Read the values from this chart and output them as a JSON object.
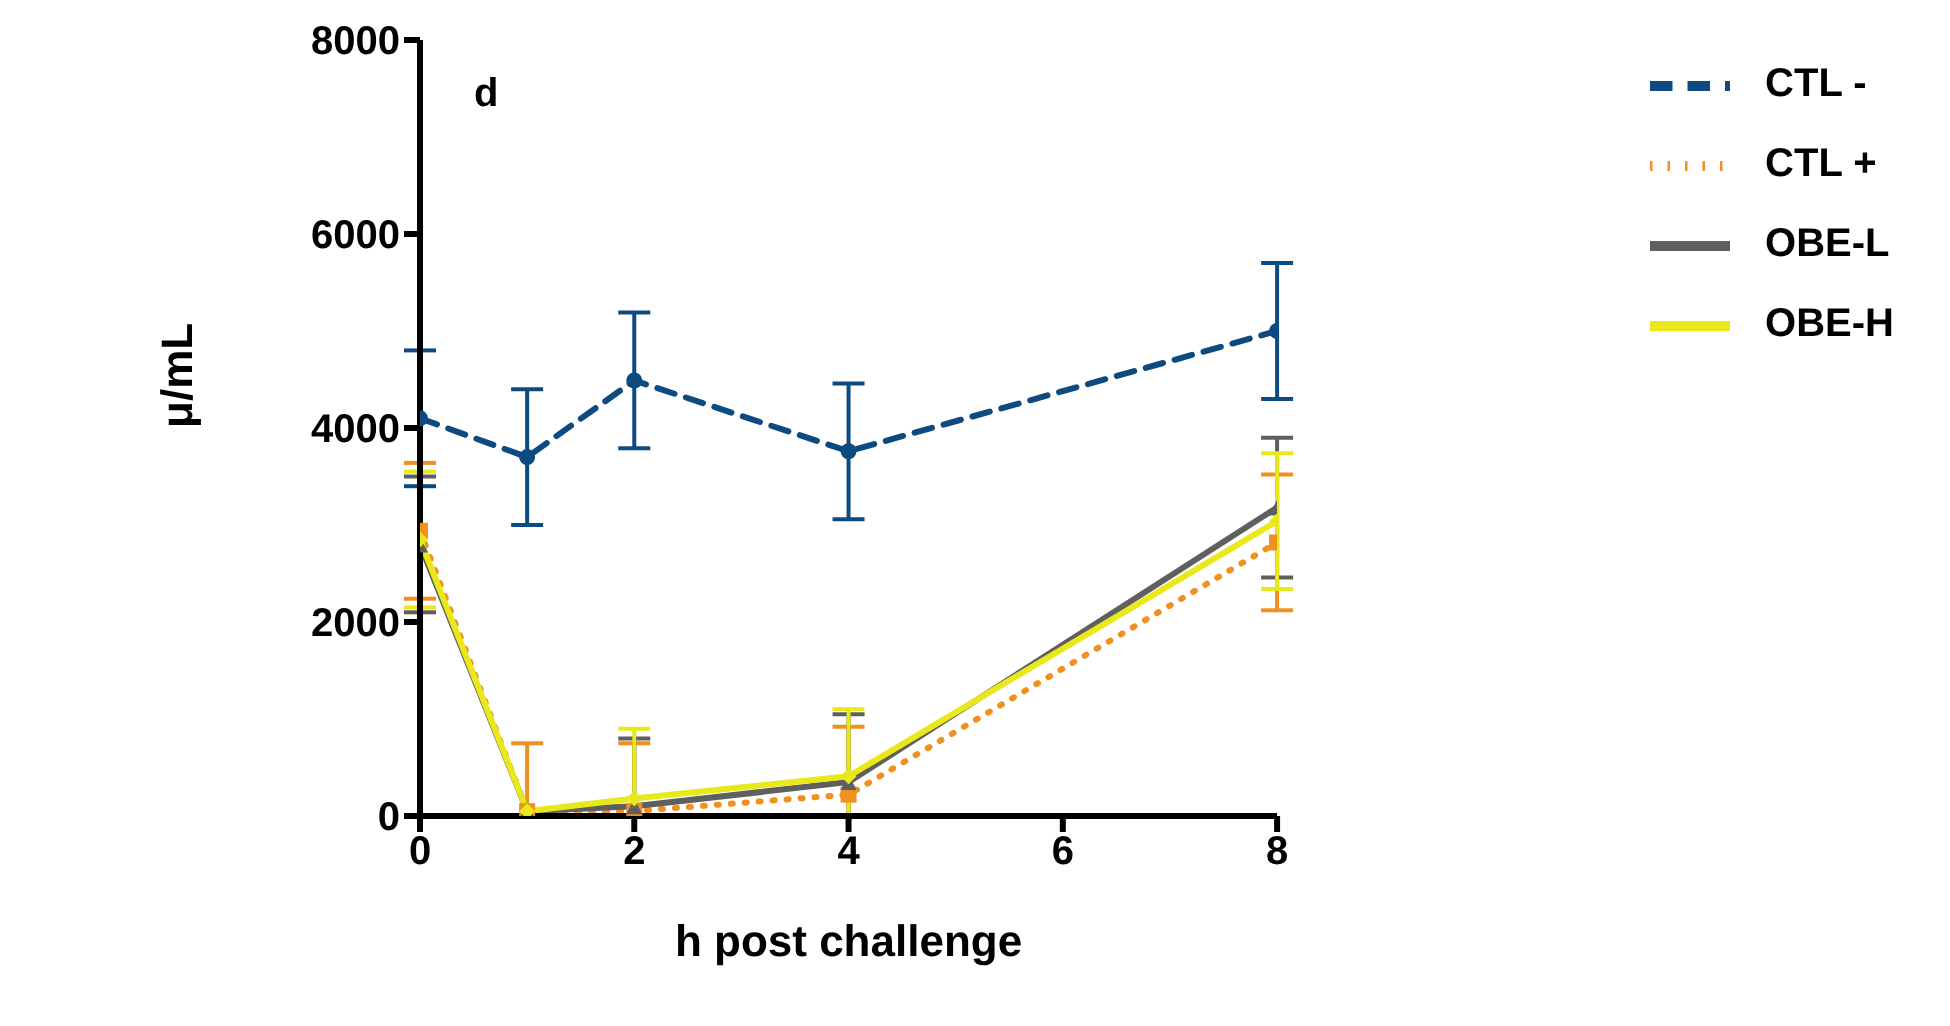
{
  "chart_data": {
    "type": "line",
    "xlabel": "h post challenge",
    "ylabel": "μ/mL",
    "annotations": [
      "d"
    ],
    "x": [
      0,
      1,
      2,
      4,
      8
    ],
    "xlim": [
      0,
      8
    ],
    "xticks": [
      0,
      2,
      4,
      6,
      8
    ],
    "ylim": [
      0,
      8000
    ],
    "yticks": [
      0,
      2000,
      4000,
      6000,
      8000
    ],
    "grid": false,
    "legend": "top right",
    "series": [
      {
        "name": "CTL -",
        "color": "#0d4a80",
        "marker": "circle",
        "line_style": "dashed",
        "values": [
          4100,
          3700,
          4490,
          3760,
          5000
        ],
        "errors": [
          700,
          700,
          700,
          700,
          700
        ]
      },
      {
        "name": "CTL +",
        "color": "#f0901e",
        "marker": "square",
        "line_style": "dotted",
        "values": [
          2940,
          50,
          50,
          220,
          2820
        ],
        "errors": [
          700,
          [
            0,
            750
          ],
          [
            0,
            750
          ],
          [
            0,
            920
          ],
          700
        ]
      },
      {
        "name": "OBE-L",
        "color": "#5f5f5f",
        "marker": "triangle",
        "line_style": "solid",
        "values": [
          2800,
          50,
          100,
          350,
          3180
        ],
        "errors": [
          700,
          null,
          [
            0,
            800
          ],
          [
            0,
            1050
          ],
          720
        ]
      },
      {
        "name": "OBE-H",
        "color": "#e8e81a",
        "marker": "diamond",
        "line_style": "solid",
        "values": [
          2850,
          50,
          180,
          410,
          3040
        ],
        "errors": [
          700,
          null,
          [
            0,
            900
          ],
          [
            0,
            1100
          ],
          700
        ]
      }
    ]
  }
}
